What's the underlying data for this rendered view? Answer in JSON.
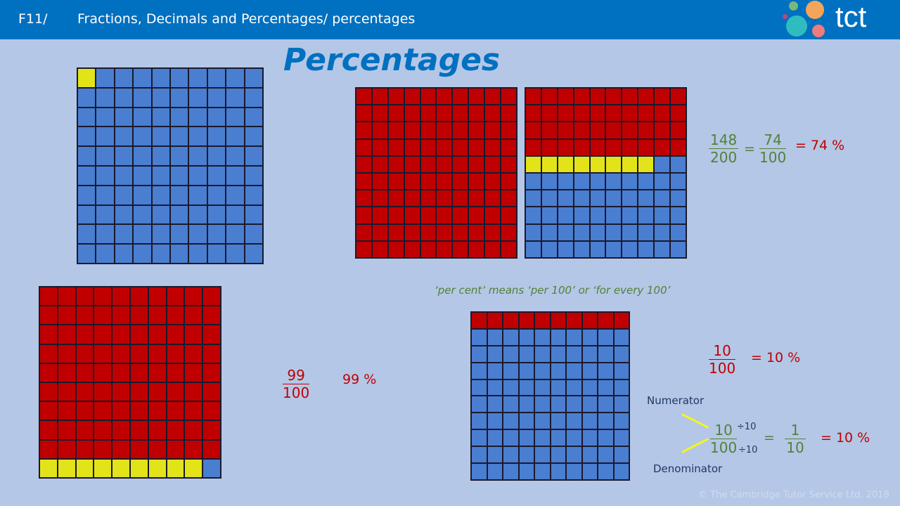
{
  "header": {
    "code": "F11/",
    "title": "Fractions, Decimals and Percentages/ percentages",
    "logo_text": "tct"
  },
  "page_title": "Percentages",
  "colors": {
    "R": "#c00000",
    "B": "#4a7ed0",
    "Y": "#e3e31a"
  },
  "grids": {
    "one": [
      "YBBBBBBBBB",
      "BBBBBBBBBB",
      "BBBBBBBBBB",
      "BBBBBBBBBB",
      "BBBBBBBBBB",
      "BBBBBBBBBB",
      "BBBBBBBBBB",
      "BBBBBBBBBB",
      "BBBBBBBBBB",
      "BBBBBBBBBB"
    ],
    "full": [
      "RRRRRRRRRR",
      "RRRRRRRRRR",
      "RRRRRRRRRR",
      "RRRRRRRRRR",
      "RRRRRRRRRR",
      "RRRRRRRRRR",
      "RRRRRRRRRR",
      "RRRRRRRRRR",
      "RRRRRRRRRR",
      "RRRRRRRRRR"
    ],
    "forty_eight": [
      "RRRRRRRRRR",
      "RRRRRRRRRR",
      "RRRRRRRRRR",
      "RRRRRRRRRR",
      "YYYYYYYYBB",
      "BBBBBBBBBB",
      "BBBBBBBBBB",
      "BBBBBBBBBB",
      "BBBBBBBBBB",
      "BBBBBBBBBB"
    ],
    "ninety_nine": [
      "RRRRRRRRRR",
      "RRRRRRRRRR",
      "RRRRRRRRRR",
      "RRRRRRRRRR",
      "RRRRRRRRRR",
      "RRRRRRRRRR",
      "RRRRRRRRRR",
      "RRRRRRRRRR",
      "RRRRRRRRRR",
      "YYYYYYYYYB"
    ],
    "ten": [
      "RRRRRRRRRR",
      "BBBBBBBBBB",
      "BBBBBBBBBB",
      "BBBBBBBBBB",
      "BBBBBBBBBB",
      "BBBBBBBBBB",
      "BBBBBBBBBB",
      "BBBBBBBBBB",
      "BBBBBBBBBB",
      "BBBBBBBBBB"
    ]
  },
  "eq1": {
    "n1": "148",
    "d1": "200",
    "eq": "=",
    "n2": "74",
    "d2": "100",
    "result": "= 74 %"
  },
  "per_cent_note": "‘per cent’ means ‘per 100’ or ‘for every 100’",
  "eq2": {
    "n": "99",
    "d": "100",
    "result": "99 %"
  },
  "eq3": {
    "n": "10",
    "d": "100",
    "result": "= 10 %"
  },
  "eq4": {
    "numerator_label": "Numerator",
    "denominator_label": "Denominator",
    "n": "10",
    "d": "100",
    "div_top": "÷10",
    "div_bottom": "÷10",
    "eq": "=",
    "n2": "1",
    "d2": "10",
    "result": "= 10 %"
  },
  "copyright": "©  The Cambridge Tutor Service Ltd.  2018"
}
